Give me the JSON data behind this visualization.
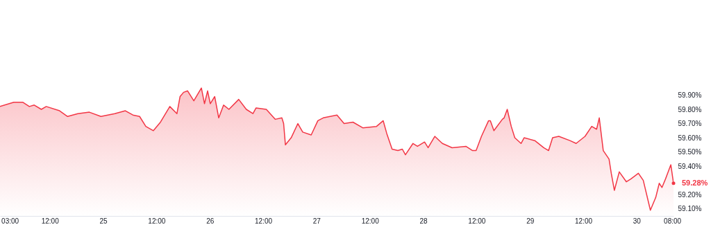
{
  "chart_data": {
    "type": "area",
    "x": [
      "--06-24T00:48",
      "--06-24T03:54",
      "--06-24T05:54",
      "--06-24T07:24",
      "--06-24T08:30",
      "--06-24T10:06",
      "--06-24T11:12",
      "--06-24T14:12",
      "--06-24T16:00",
      "--06-24T18:18",
      "--06-24T20:54",
      "--06-24T23:30",
      "--06-25T02:36",
      "--06-25T05:00",
      "--06-25T06:42",
      "--06-25T08:12",
      "--06-25T09:36",
      "--06-25T11:18",
      "--06-25T12:54",
      "--06-25T15:00",
      "--06-25T16:36",
      "--06-25T17:18",
      "--06-25T18:06",
      "--06-25T19:00",
      "--06-25T20:24",
      "--06-25T22:06",
      "--06-25T22:48",
      "--06-25T23:30",
      "--06-26T00:06",
      "--06-26T01:06",
      "--06-26T02:00",
      "--06-26T03:06",
      "--06-26T04:18",
      "--06-26T06:30",
      "--06-26T08:12",
      "--06-26T09:42",
      "--06-26T10:24",
      "--06-26T12:42",
      "--06-26T14:42",
      "--06-26T16:12",
      "--06-26T16:36",
      "--06-26T17:00",
      "--06-26T18:18",
      "--06-26T19:48",
      "--06-26T20:54",
      "--06-26T22:48",
      "--06-27T00:18",
      "--06-27T01:30",
      "--06-27T04:36",
      "--06-27T06:12",
      "--06-27T08:12",
      "--06-27T10:24",
      "--06-27T13:30",
      "--06-27T15:00",
      "--06-27T15:48",
      "--06-27T17:00",
      "--06-27T18:18",
      "--06-27T19:18",
      "--06-27T20:00",
      "--06-27T21:42",
      "--06-27T22:42",
      "--06-28T00:18",
      "--06-28T01:06",
      "--06-28T02:36",
      "--06-28T04:18",
      "--06-28T06:30",
      "--06-28T09:36",
      "--06-28T11:06",
      "--06-28T11:54",
      "--06-28T13:06",
      "--06-28T14:42",
      "--06-28T15:06",
      "--06-28T15:54",
      "--06-28T17:48",
      "--06-28T18:12",
      "--06-28T18:54",
      "--06-28T19:48",
      "--06-28T20:36",
      "--06-28T22:00",
      "--06-28T22:42",
      "--06-29T01:06",
      "--06-29T03:06",
      "--06-29T04:12",
      "--06-29T05:06",
      "--06-29T06:30",
      "--06-29T09:00",
      "--06-29T10:24",
      "--06-29T12:24",
      "--06-29T13:54",
      "--06-29T15:00",
      "--06-29T15:36",
      "--06-29T16:30",
      "--06-29T17:48",
      "--06-29T18:18",
      "--06-29T19:00",
      "--06-29T20:06",
      "--06-29T21:42",
      "--06-29T22:42",
      "--06-30T00:24",
      "--06-30T01:30",
      "--06-30T03:06",
      "--06-30T04:18",
      "--06-30T05:06",
      "--06-30T05:42",
      "--06-30T06:30",
      "--06-30T07:42",
      "--06-30T08:18"
    ],
    "series": [
      {
        "color": "#f23645",
        "values": [
          59.82,
          59.85,
          59.85,
          59.82,
          59.83,
          59.8,
          59.82,
          59.79,
          59.75,
          59.77,
          59.78,
          59.75,
          59.77,
          59.79,
          59.76,
          59.75,
          59.68,
          59.65,
          59.71,
          59.82,
          59.77,
          59.89,
          59.92,
          59.93,
          59.86,
          59.95,
          59.84,
          59.93,
          59.84,
          59.89,
          59.74,
          59.83,
          59.8,
          59.87,
          59.8,
          59.77,
          59.81,
          59.8,
          59.73,
          59.74,
          59.7,
          59.55,
          59.6,
          59.7,
          59.64,
          59.62,
          59.72,
          59.74,
          59.76,
          59.7,
          59.71,
          59.67,
          59.68,
          59.72,
          59.63,
          59.52,
          59.51,
          59.52,
          59.48,
          59.56,
          59.54,
          59.57,
          59.53,
          59.61,
          59.56,
          59.53,
          59.54,
          59.51,
          59.51,
          59.61,
          59.72,
          59.72,
          59.65,
          59.73,
          59.74,
          59.8,
          59.68,
          59.6,
          59.56,
          59.6,
          59.58,
          59.53,
          59.51,
          59.6,
          59.61,
          59.58,
          59.56,
          59.61,
          59.68,
          59.66,
          59.74,
          59.51,
          59.45,
          59.35,
          59.23,
          59.36,
          59.29,
          59.31,
          59.35,
          59.3,
          59.09,
          59.18,
          59.28,
          59.25,
          59.31,
          59.41,
          59.28
        ]
      }
    ],
    "xlim": [
      "--06-24T00:48",
      "--06-30T08:18"
    ],
    "xticks": [
      {
        "value": "--06-24T03:00",
        "label": "03:00"
      },
      {
        "value": "--06-24T12:00",
        "label": "12:00"
      },
      {
        "value": "--06-25",
        "label": "25"
      },
      {
        "value": "--06-25T12:00",
        "label": "12:00"
      },
      {
        "value": "--06-26",
        "label": "26"
      },
      {
        "value": "--06-26T12:00",
        "label": "12:00"
      },
      {
        "value": "--06-27",
        "label": "27"
      },
      {
        "value": "--06-27T12:00",
        "label": "12:00"
      },
      {
        "value": "--06-28",
        "label": "28"
      },
      {
        "value": "--06-28T12:00",
        "label": "12:00"
      },
      {
        "value": "--06-29",
        "label": "29"
      },
      {
        "value": "--06-29T12:00",
        "label": "12:00"
      },
      {
        "value": "--06-30",
        "label": "30"
      },
      {
        "value": "--06-30T08:00",
        "label": "08:00"
      }
    ],
    "ylim": [
      59.05,
      60.55
    ],
    "yticks": [
      {
        "value": 59.1,
        "label": "59.10%"
      },
      {
        "value": 59.2,
        "label": "59.20%"
      },
      {
        "value": 59.4,
        "label": "59.40%"
      },
      {
        "value": 59.5,
        "label": "59.50%"
      },
      {
        "value": 59.6,
        "label": "59.60%"
      },
      {
        "value": 59.7,
        "label": "59.70%"
      },
      {
        "value": 59.8,
        "label": "59.80%"
      },
      {
        "value": 59.9,
        "label": "59.90%"
      }
    ],
    "grid": false,
    "annotations": [
      {
        "text": "59.28%",
        "x": "--06-30T08:18",
        "y": 59.28
      }
    ]
  }
}
